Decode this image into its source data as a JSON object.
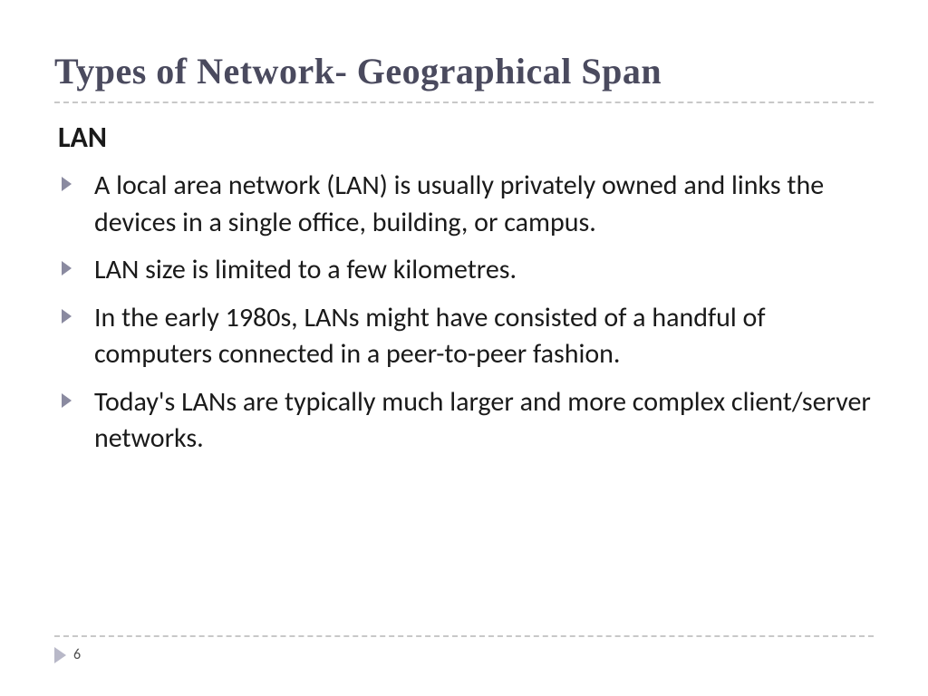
{
  "slide": {
    "title": "Types of Network- Geographical Span",
    "subtitle": "LAN",
    "bullets": [
      "A local area network (LAN) is usually privately owned and links the devices in a single office, building, or campus.",
      "LAN size is limited to a few kilometres.",
      "In the early 1980s, LANs might have consisted of a handful of computers connected in a peer-to-peer fashion.",
      "Today's LANs are typically much larger and more complex client/server networks."
    ],
    "page_number": "6"
  },
  "style": {
    "title_color": "#4a4a5e",
    "title_fontsize": 40,
    "title_font": "Georgia, serif",
    "subtitle_fontsize": 32,
    "body_fontsize": 30,
    "body_color": "#1a1a1a",
    "bullet_color": "#8a8aa0",
    "divider_color": "#c8c8c8",
    "footer_marker_color": "#b8b8c8",
    "background_color": "#ffffff"
  }
}
